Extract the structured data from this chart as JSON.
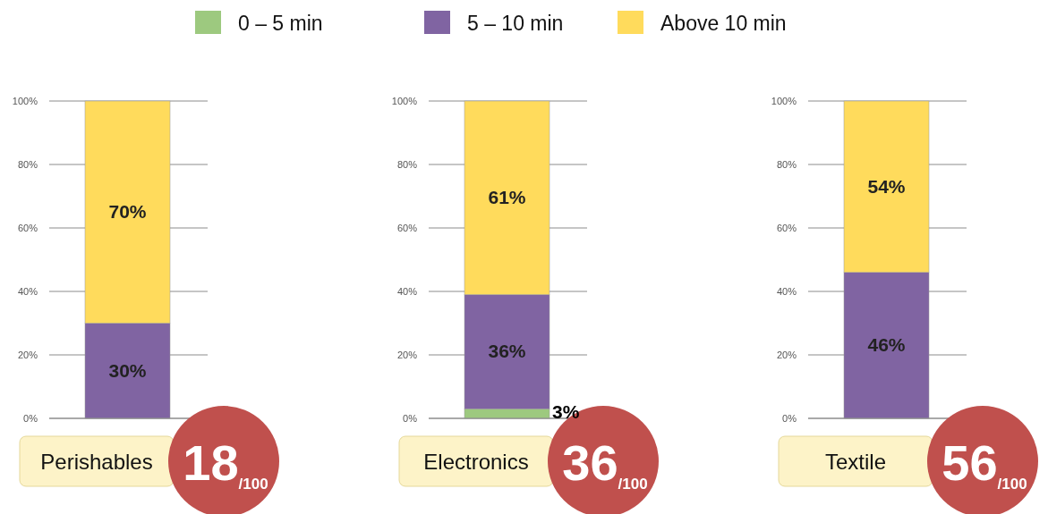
{
  "chart_data": [
    {
      "type": "bar",
      "stacked": true,
      "categories": [
        "Perishables"
      ],
      "legend": "top",
      "grid": "y",
      "ylim": [
        0,
        100
      ],
      "yticks": [
        {
          "value": 0,
          "label": "0%"
        },
        {
          "value": 20,
          "label": "20%"
        },
        {
          "value": 40,
          "label": "40%"
        },
        {
          "value": 60,
          "label": "60%"
        },
        {
          "value": 80,
          "label": "80%"
        },
        {
          "value": 100,
          "label": "100%"
        }
      ],
      "series": [
        {
          "name": "0 – 5 min",
          "color": "#9dc97f",
          "values": [
            0
          ],
          "value_labels": [
            null
          ]
        },
        {
          "name": "5 – 10 min",
          "color": "#8064a2",
          "values": [
            30
          ],
          "value_labels": [
            "30%"
          ]
        },
        {
          "name": "Above 10 min",
          "color": "#ffdb5c",
          "values": [
            70
          ],
          "value_labels": [
            "70%"
          ]
        }
      ],
      "annotations": [
        "18$_{/100}$"
      ]
    },
    {
      "type": "bar",
      "stacked": true,
      "categories": [
        "Electronics"
      ],
      "grid": "y",
      "ylim": [
        0,
        100
      ],
      "yticks": [
        {
          "value": 0,
          "label": "0%"
        },
        {
          "value": 20,
          "label": "20%"
        },
        {
          "value": 40,
          "label": "40%"
        },
        {
          "value": 60,
          "label": "60%"
        },
        {
          "value": 80,
          "label": "80%"
        },
        {
          "value": 100,
          "label": "100%"
        }
      ],
      "series": [
        {
          "color": "#9dc97f",
          "values": [
            3
          ],
          "value_labels": [
            "3%"
          ]
        },
        {
          "color": "#8064a2",
          "values": [
            36
          ],
          "value_labels": [
            "36%"
          ]
        },
        {
          "color": "#ffdb5c",
          "values": [
            61
          ],
          "value_labels": [
            "61%"
          ]
        }
      ],
      "annotations": [
        "36$_{/100}$"
      ]
    },
    {
      "type": "bar",
      "stacked": true,
      "categories": [
        "Textile"
      ],
      "grid": "y",
      "ylim": [
        0,
        100
      ],
      "yticks": [
        {
          "value": 0,
          "label": "0%"
        },
        {
          "value": 20,
          "label": "20%"
        },
        {
          "value": 40,
          "label": "40%"
        },
        {
          "value": 60,
          "label": "60%"
        },
        {
          "value": 80,
          "label": "80%"
        },
        {
          "value": 100,
          "label": "100%"
        }
      ],
      "series": [
        {
          "color": "#9dc97f",
          "values": [
            0
          ],
          "value_labels": [
            null
          ]
        },
        {
          "color": "#8064a2",
          "values": [
            46
          ],
          "value_labels": [
            "46%"
          ]
        },
        {
          "color": "#ffdb5c",
          "values": [
            54
          ],
          "value_labels": [
            "54%"
          ]
        }
      ],
      "annotations": [
        "56$_{/100}$"
      ]
    }
  ]
}
